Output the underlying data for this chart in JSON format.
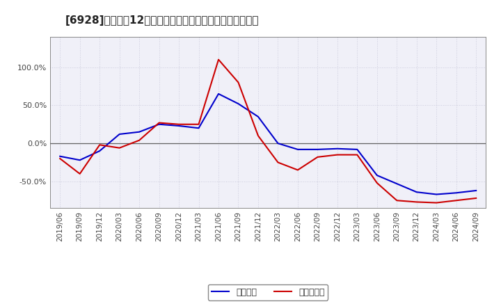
{
  "title": "[6928]　利益だ12か月移動合計の対前年同期増減率の推移",
  "x_labels": [
    "2019/06",
    "2019/09",
    "2019/12",
    "2020/03",
    "2020/06",
    "2020/09",
    "2020/12",
    "2021/03",
    "2021/06",
    "2021/09",
    "2021/12",
    "2022/03",
    "2022/06",
    "2022/09",
    "2022/12",
    "2023/03",
    "2023/06",
    "2023/09",
    "2023/12",
    "2024/03",
    "2024/06",
    "2024/09"
  ],
  "keijo_rieki": [
    -0.17,
    -0.22,
    -0.1,
    0.12,
    0.15,
    0.25,
    0.23,
    0.2,
    0.65,
    0.52,
    0.35,
    0.0,
    -0.08,
    -0.08,
    -0.07,
    -0.08,
    -0.42,
    -0.53,
    -0.64,
    -0.67,
    -0.65,
    -0.62
  ],
  "touki_junnrieki": [
    -0.2,
    -0.4,
    -0.02,
    -0.06,
    0.04,
    0.27,
    0.25,
    0.25,
    1.1,
    0.8,
    0.1,
    -0.25,
    -0.35,
    -0.18,
    -0.15,
    -0.15,
    -0.52,
    -0.75,
    -0.77,
    -0.78,
    -0.75,
    -0.72
  ],
  "line_color_keijo": "#0000cc",
  "line_color_touki": "#cc0000",
  "background_color": "#ffffff",
  "plot_bg_color": "#f0f0f8",
  "grid_color": "#ccccdd",
  "zero_line_color": "#606060",
  "legend_keijo": "経常利益",
  "legend_touki": "当期純利益",
  "yticks": [
    -0.5,
    0.0,
    0.5,
    1.0
  ],
  "ytick_labels": [
    "-50.0%",
    "0.0%",
    "50.0%",
    "100.0%"
  ],
  "ylim": [
    -0.85,
    1.4
  ],
  "title_fontsize": 11,
  "tick_fontsize": 7.5,
  "legend_fontsize": 9
}
